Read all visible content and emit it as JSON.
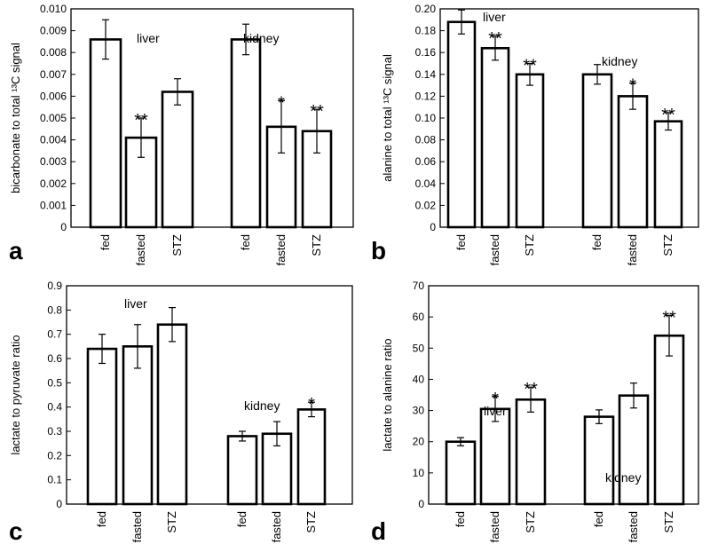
{
  "chart_data": [
    {
      "type": "bar",
      "panel_letter": "a",
      "ylabel": "bicarbonate to total ¹³C signal",
      "ylim": [
        0,
        0.01
      ],
      "yticks": [
        "0",
        "0.001",
        "0.002",
        "0.003",
        "0.004",
        "0.005",
        "0.006",
        "0.007",
        "0.008",
        "0.009",
        "0.010"
      ],
      "ytick_values": [
        0,
        0.001,
        0.002,
        0.003,
        0.004,
        0.005,
        0.006,
        0.007,
        0.008,
        0.009,
        0.01
      ],
      "groups": [
        {
          "name": "liver",
          "categories": [
            "fed",
            "fasted",
            "STZ"
          ],
          "values": [
            0.0086,
            0.0041,
            0.0062
          ],
          "errors": [
            0.0009,
            0.0009,
            0.0006
          ],
          "significance": [
            "",
            "**",
            ""
          ]
        },
        {
          "name": "kidney",
          "categories": [
            "fed",
            "fasted",
            "STZ"
          ],
          "values": [
            0.0086,
            0.0046,
            0.0044
          ],
          "errors": [
            0.0007,
            0.0012,
            0.001
          ],
          "significance": [
            "",
            "*",
            "**"
          ]
        }
      ]
    },
    {
      "type": "bar",
      "panel_letter": "b",
      "ylabel": "alanine to total ¹³C signal",
      "ylim": [
        0,
        0.2
      ],
      "yticks": [
        "0",
        "0.02",
        "0.04",
        "0.06",
        "0.08",
        "0.10",
        "0.12",
        "0.14",
        "0.16",
        "0.18",
        "0.20"
      ],
      "ytick_values": [
        0,
        0.02,
        0.04,
        0.06,
        0.08,
        0.1,
        0.12,
        0.14,
        0.16,
        0.18,
        0.2
      ],
      "groups": [
        {
          "name": "liver",
          "categories": [
            "fed",
            "fasted",
            "STZ"
          ],
          "values": [
            0.188,
            0.164,
            0.14
          ],
          "errors": [
            0.011,
            0.011,
            0.01
          ],
          "significance": [
            "",
            "**",
            "**"
          ]
        },
        {
          "name": "kidney",
          "categories": [
            "fed",
            "fasted",
            "STZ"
          ],
          "values": [
            0.14,
            0.12,
            0.097
          ],
          "errors": [
            0.009,
            0.012,
            0.008
          ],
          "significance": [
            "",
            "*",
            "**"
          ]
        }
      ]
    },
    {
      "type": "bar",
      "panel_letter": "c",
      "ylabel": "lactate to pyruvate ratio",
      "ylim": [
        0,
        0.9
      ],
      "yticks": [
        "0",
        "0.1",
        "0.2",
        "0.3",
        "0.4",
        "0.5",
        "0.6",
        "0.7",
        "0.8",
        "0.9"
      ],
      "ytick_values": [
        0,
        0.1,
        0.2,
        0.3,
        0.4,
        0.5,
        0.6,
        0.7,
        0.8,
        0.9
      ],
      "groups": [
        {
          "name": "liver",
          "categories": [
            "fed",
            "fasted",
            "STZ"
          ],
          "values": [
            0.64,
            0.65,
            0.74
          ],
          "errors": [
            0.06,
            0.09,
            0.07
          ],
          "significance": [
            "",
            "",
            ""
          ]
        },
        {
          "name": "kidney",
          "categories": [
            "fed",
            "fasted",
            "STZ"
          ],
          "values": [
            0.28,
            0.29,
            0.39
          ],
          "errors": [
            0.02,
            0.05,
            0.03
          ],
          "significance": [
            "",
            "",
            "*"
          ]
        }
      ]
    },
    {
      "type": "bar",
      "panel_letter": "d",
      "ylabel": "lactate to alanine ratio",
      "ylim": [
        0,
        70
      ],
      "yticks": [
        "0",
        "10",
        "20",
        "30",
        "40",
        "50",
        "60",
        "70"
      ],
      "ytick_values": [
        0,
        10,
        20,
        30,
        40,
        50,
        60,
        70
      ],
      "groups": [
        {
          "name": "liver",
          "categories": [
            "fed",
            "fasted",
            "STZ"
          ],
          "values": [
            20,
            30.5,
            33.5
          ],
          "errors": [
            1.3,
            4,
            4
          ],
          "significance": [
            "",
            "*",
            "**"
          ]
        },
        {
          "name": "kidney",
          "categories": [
            "fed",
            "fasted",
            "STZ"
          ],
          "values": [
            28,
            34.8,
            54
          ],
          "errors": [
            2.2,
            4,
            6.5
          ],
          "significance": [
            "",
            "",
            "**"
          ]
        }
      ]
    }
  ]
}
